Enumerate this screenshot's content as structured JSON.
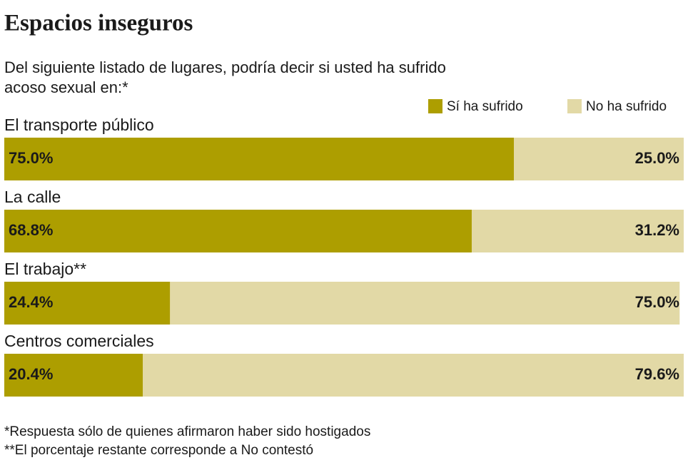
{
  "chart_data": {
    "type": "stacked_barh",
    "title": "Espacios inseguros",
    "subtitle": [
      "Del siguiente listado de lugares, podría decir si usted ha sufrido",
      "acoso sexual en:*"
    ],
    "categories": [
      "El transporte público",
      "La calle",
      "El trabajo**",
      "Centros comerciales"
    ],
    "series": [
      {
        "name": "Sí ha sufrido",
        "color": "#ad9e00",
        "values": [
          75.0,
          68.8,
          24.4,
          20.4
        ],
        "value_labels": [
          "75.0%",
          "68.8%",
          "24.4%",
          "20.4%"
        ]
      },
      {
        "name": "No ha sufrido",
        "color": "#e2d9a6",
        "values": [
          25.0,
          31.2,
          75.0,
          79.6
        ],
        "value_labels": [
          "25.0%",
          "31.2%",
          "75.0%",
          "79.6%"
        ]
      }
    ],
    "xlim": [
      0,
      100
    ],
    "notes": [
      "*Respuesta sólo de quienes afirmaron haber sido hostigados",
      "**El porcentaje restante corresponde a No contestó"
    ]
  }
}
